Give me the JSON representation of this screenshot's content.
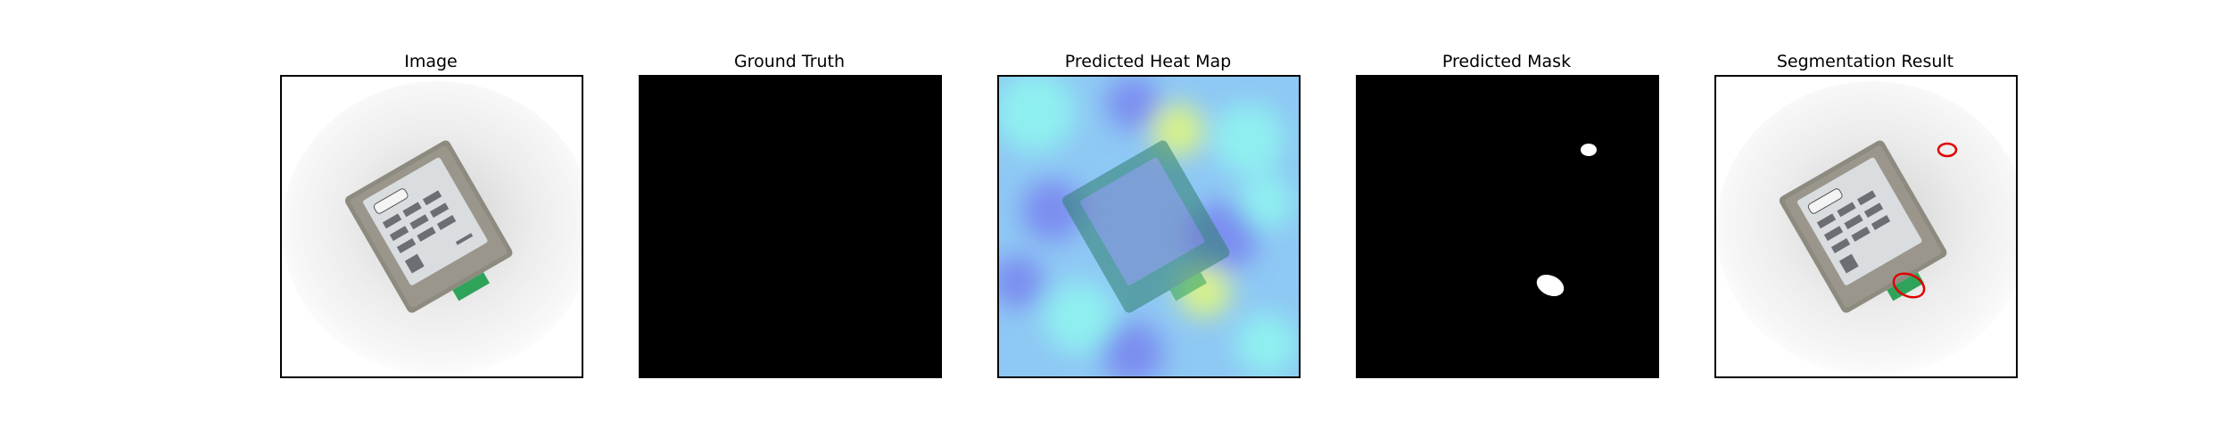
{
  "panels": [
    {
      "title": "Image"
    },
    {
      "title": "Ground Truth"
    },
    {
      "title": "Predicted Heat Map"
    },
    {
      "title": "Predicted Mask"
    },
    {
      "title": "Segmentation Result"
    }
  ],
  "colors": {
    "background": "#ffffff",
    "frame": "#000000",
    "mask_bg": "#000000",
    "mask_fg": "#ffffff",
    "contour": "#e00000",
    "heat_low": "#7c8ef0",
    "heat_mid": "#8ff0f0",
    "heat_high": "#d8f28a",
    "device_body": "#8d8a80",
    "device_label": "#d9dde0",
    "connector": "#2fa35a"
  }
}
